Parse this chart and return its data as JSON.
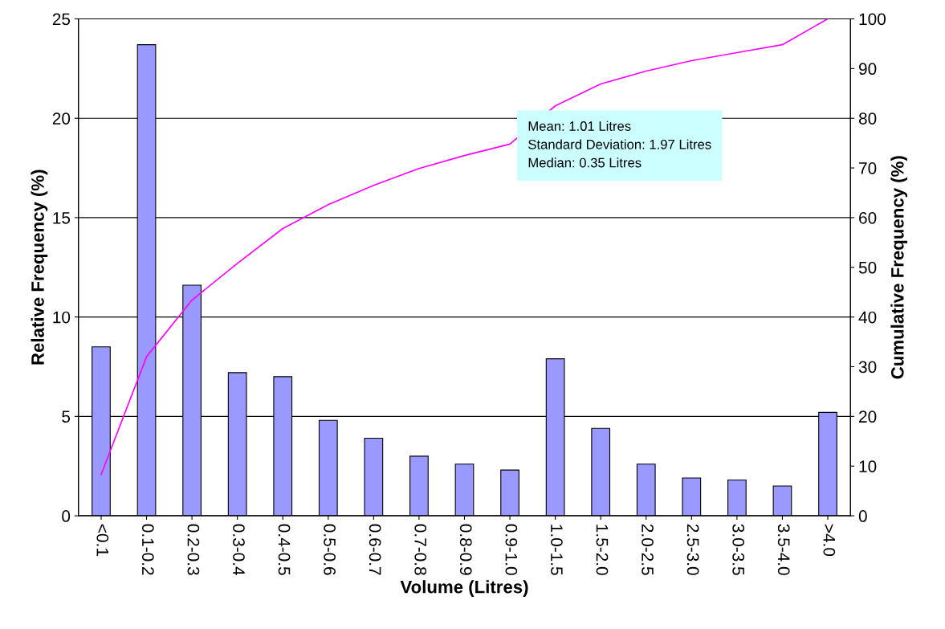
{
  "chart_data": {
    "type": "bar",
    "xlabel": "Volume (Litres)",
    "ylabel": "Relative Frequency (%)",
    "y2label": "Cumulative Frequency (%)",
    "categories": [
      "<0.1",
      "0.1-0.2",
      "0.2-0.3",
      "0.3-0.4",
      "0.4-0.5",
      "0.5-0.6",
      "0.6-0.7",
      "0.7-0.8",
      "0.8-0.9",
      "0.9-1.0",
      "1.0-1.5",
      "1.5-2.0",
      "2.0-2.5",
      "2.5-3.0",
      "3.0-3.5",
      "3.5-4.0",
      ">4.0"
    ],
    "series": [
      {
        "color": "#9999ff",
        "values": [
          8.5,
          23.7,
          11.6,
          7.2,
          7.0,
          4.8,
          3.9,
          3.0,
          2.6,
          2.3,
          7.9,
          4.4,
          2.6,
          1.9,
          1.8,
          1.5,
          5.2
        ]
      },
      {
        "type": "line",
        "axis": "y2",
        "color": "#ff00ff",
        "values": [
          8.3,
          32.0,
          43.4,
          50.8,
          57.8,
          62.6,
          66.5,
          69.9,
          72.5,
          74.8,
          82.5,
          86.9,
          89.5,
          91.6,
          93.2,
          94.8,
          100
        ]
      }
    ],
    "ylim": [
      0,
      25
    ],
    "yticks": [
      0,
      5,
      10,
      15,
      20,
      25
    ],
    "y2lim": [
      0,
      100
    ],
    "y2ticks": [
      0,
      10,
      20,
      30,
      40,
      50,
      60,
      70,
      80,
      90,
      100
    ],
    "grid": "y",
    "marker": "none",
    "line_style": "solid",
    "annotations": [
      "Mean: 1.01 Litres\nStandard Deviation: 1.97 Litres\nMedian: 0.35 Litres"
    ]
  }
}
